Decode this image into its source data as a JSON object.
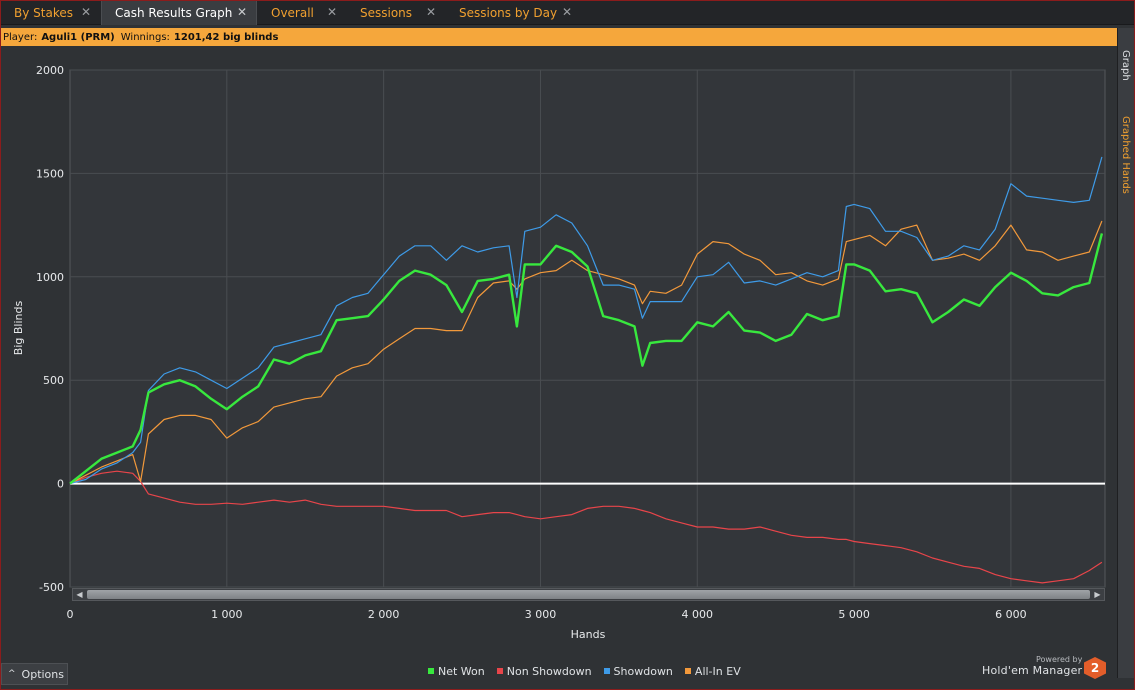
{
  "tabs": [
    {
      "label": "By Stakes",
      "active": false
    },
    {
      "label": "Cash Results Graph",
      "active": true
    },
    {
      "label": "Overall",
      "active": false
    },
    {
      "label": "Sessions",
      "active": false
    },
    {
      "label": "Sessions by Day",
      "active": false
    }
  ],
  "info": {
    "player_label": "Player:",
    "player_value": "Aguli1 (PRM)",
    "winnings_label": "Winnings:",
    "winnings_value": "1201,42 big blinds"
  },
  "side_panel": {
    "tab1": "Graph",
    "tab2": "Graphed Hands"
  },
  "options_label": "Options",
  "brand": {
    "powered_by": "Powered by",
    "name": "Hold'em Manager",
    "logo_text": "2"
  },
  "colors": {
    "net_won": "#38e83e",
    "non_showdown": "#e8454a",
    "showdown": "#3e9be8",
    "all_in_ev": "#f2993b",
    "accent": "#f5a73c"
  },
  "chart_data": {
    "type": "line",
    "xlabel": "Hands",
    "ylabel": "Big Blinds",
    "xlim": [
      0,
      6600
    ],
    "ylim": [
      -500,
      2000
    ],
    "x_ticks": [
      0,
      1000,
      2000,
      3000,
      4000,
      5000,
      6000
    ],
    "x_tick_labels": [
      "0",
      "1 000",
      "2 000",
      "3 000",
      "4 000",
      "5 000",
      "6 000"
    ],
    "y_ticks": [
      -500,
      0,
      500,
      1000,
      1500,
      2000
    ],
    "y_tick_labels": [
      "-500",
      "0",
      "500",
      "1000",
      "1500",
      "2000"
    ],
    "grid": true,
    "legend_position": "bottom",
    "x": [
      0,
      100,
      200,
      300,
      400,
      450,
      500,
      600,
      700,
      800,
      900,
      1000,
      1100,
      1200,
      1300,
      1400,
      1500,
      1600,
      1700,
      1800,
      1900,
      2000,
      2100,
      2200,
      2300,
      2400,
      2500,
      2600,
      2700,
      2800,
      2850,
      2900,
      3000,
      3100,
      3200,
      3300,
      3400,
      3500,
      3600,
      3650,
      3700,
      3800,
      3900,
      4000,
      4100,
      4200,
      4300,
      4400,
      4500,
      4600,
      4700,
      4800,
      4900,
      4950,
      5000,
      5100,
      5200,
      5300,
      5400,
      5500,
      5600,
      5700,
      5800,
      5900,
      6000,
      6100,
      6200,
      6300,
      6400,
      6500,
      6580
    ],
    "series": [
      {
        "name": "Net Won",
        "values": [
          0,
          60,
          120,
          150,
          180,
          260,
          440,
          480,
          500,
          470,
          410,
          360,
          420,
          470,
          600,
          580,
          620,
          640,
          790,
          800,
          810,
          890,
          980,
          1030,
          1010,
          960,
          830,
          980,
          990,
          1010,
          760,
          1060,
          1060,
          1150,
          1120,
          1050,
          810,
          790,
          760,
          570,
          680,
          690,
          690,
          780,
          760,
          830,
          740,
          730,
          690,
          720,
          820,
          790,
          810,
          1060,
          1060,
          1030,
          930,
          940,
          920,
          780,
          830,
          890,
          860,
          950,
          1020,
          980,
          920,
          910,
          950,
          970,
          1210
        ]
      },
      {
        "name": "Non Showdown",
        "values": [
          0,
          30,
          50,
          60,
          50,
          10,
          -50,
          -70,
          -90,
          -100,
          -100,
          -95,
          -100,
          -90,
          -80,
          -90,
          -80,
          -100,
          -110,
          -110,
          -110,
          -110,
          -120,
          -130,
          -130,
          -130,
          -160,
          -150,
          -140,
          -140,
          -150,
          -160,
          -170,
          -160,
          -150,
          -120,
          -110,
          -110,
          -120,
          -130,
          -140,
          -170,
          -190,
          -210,
          -210,
          -220,
          -220,
          -210,
          -230,
          -250,
          -260,
          -260,
          -270,
          -270,
          -280,
          -290,
          -300,
          -310,
          -330,
          -360,
          -380,
          -400,
          -410,
          -440,
          -460,
          -470,
          -480,
          -470,
          -460,
          -420,
          -380
        ]
      },
      {
        "name": "Showdown",
        "values": [
          0,
          20,
          70,
          100,
          150,
          200,
          450,
          530,
          560,
          540,
          500,
          460,
          510,
          560,
          660,
          680,
          700,
          720,
          860,
          900,
          920,
          1010,
          1100,
          1150,
          1150,
          1080,
          1150,
          1120,
          1140,
          1150,
          900,
          1220,
          1240,
          1300,
          1260,
          1150,
          960,
          960,
          940,
          800,
          880,
          880,
          880,
          1000,
          1010,
          1070,
          970,
          980,
          960,
          990,
          1020,
          1000,
          1030,
          1340,
          1350,
          1330,
          1220,
          1220,
          1190,
          1080,
          1100,
          1150,
          1130,
          1230,
          1450,
          1390,
          1380,
          1370,
          1360,
          1370,
          1580
        ]
      },
      {
        "name": "All-In EV",
        "values": [
          0,
          40,
          80,
          110,
          140,
          10,
          240,
          310,
          330,
          330,
          310,
          220,
          270,
          300,
          370,
          390,
          410,
          420,
          520,
          560,
          580,
          650,
          700,
          750,
          750,
          740,
          740,
          900,
          970,
          980,
          940,
          990,
          1020,
          1030,
          1080,
          1030,
          1010,
          990,
          960,
          870,
          930,
          920,
          960,
          1110,
          1170,
          1160,
          1110,
          1080,
          1010,
          1020,
          980,
          960,
          990,
          1170,
          1180,
          1200,
          1150,
          1230,
          1250,
          1080,
          1090,
          1110,
          1080,
          1150,
          1250,
          1130,
          1120,
          1080,
          1100,
          1120,
          1270
        ]
      }
    ]
  }
}
